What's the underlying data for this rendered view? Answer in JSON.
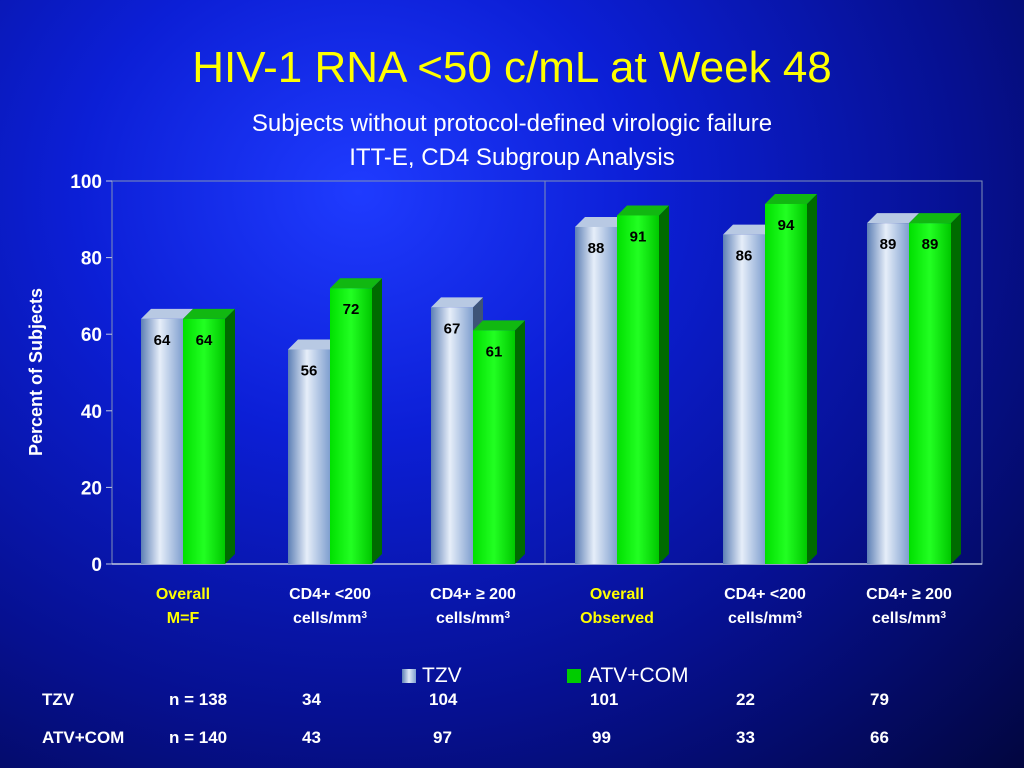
{
  "slide": {
    "title": "HIV-1 RNA <50 c/mL at Week 48",
    "subtitle_line1": "Subjects without protocol-defined virologic failure",
    "subtitle_line2": "ITT-E, CD4 Subgroup Analysis"
  },
  "chart_data": {
    "type": "bar",
    "ylabel": "Percent of Subjects",
    "ylim": [
      0,
      100
    ],
    "yticks": [
      "0",
      "20",
      "40",
      "60",
      "80",
      "100"
    ],
    "categories": [
      {
        "line1": "Overall",
        "line2": "M=F",
        "highlight": true
      },
      {
        "line1": "CD4+ <200",
        "line2": "cells/mm",
        "sup": "3",
        "highlight": false
      },
      {
        "line1": "CD4+ ≥ 200",
        "line2": "cells/mm",
        "sup": "3",
        "highlight": false
      },
      {
        "line1": "Overall",
        "line2": "Observed",
        "highlight": true
      },
      {
        "line1": "CD4+ <200",
        "line2": "cells/mm",
        "sup": "3",
        "highlight": false
      },
      {
        "line1": "CD4+ ≥ 200",
        "line2": "cells/mm",
        "sup": "3",
        "highlight": false
      }
    ],
    "series": [
      {
        "name": "TZV",
        "values": [
          64,
          56,
          67,
          88,
          86,
          89
        ],
        "color": "#9bb4d8",
        "label_color": "#000000"
      },
      {
        "name": "ATV+COM",
        "values": [
          64,
          72,
          61,
          91,
          94,
          89
        ],
        "color": "#00cc00",
        "label_color": "#000000"
      }
    ],
    "highlight_color": "#ffff00"
  },
  "table": {
    "rows": [
      {
        "label": "TZV",
        "n": "n = 138",
        "values": [
          "34",
          "104",
          "101",
          "22",
          "79"
        ]
      },
      {
        "label": "ATV+COM",
        "n": "n = 140",
        "values": [
          "43",
          "97",
          "99",
          "33",
          "66"
        ]
      }
    ]
  }
}
